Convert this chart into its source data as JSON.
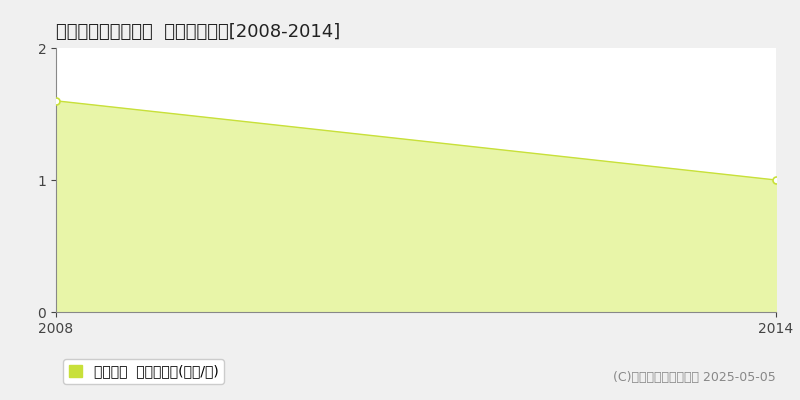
{
  "title": "東白川郡棚倉町福井  土地価格推移[2008-2014]",
  "years": [
    2008,
    2014
  ],
  "values": [
    1.6,
    1.0
  ],
  "ylim": [
    0,
    2
  ],
  "xlim": [
    2008,
    2014
  ],
  "yticks": [
    0,
    1,
    2
  ],
  "xticks": [
    2008,
    2014
  ],
  "line_color": "#c8e03a",
  "fill_color": "#e8f5a8",
  "marker_edge_color": "#c8e03a",
  "dashed_line_color": "#bbbbbb",
  "bg_color": "#ffffff",
  "fig_bg_color": "#f0f0f0",
  "legend_label": "土地価格  平均坪単価(万円/坪)",
  "legend_square_color": "#c8e03a",
  "copyright_text": "(C)土地価格ドットコム 2025-05-05",
  "title_fontsize": 13,
  "axis_fontsize": 10,
  "legend_fontsize": 10,
  "copyright_fontsize": 9,
  "spine_color": "#888888"
}
